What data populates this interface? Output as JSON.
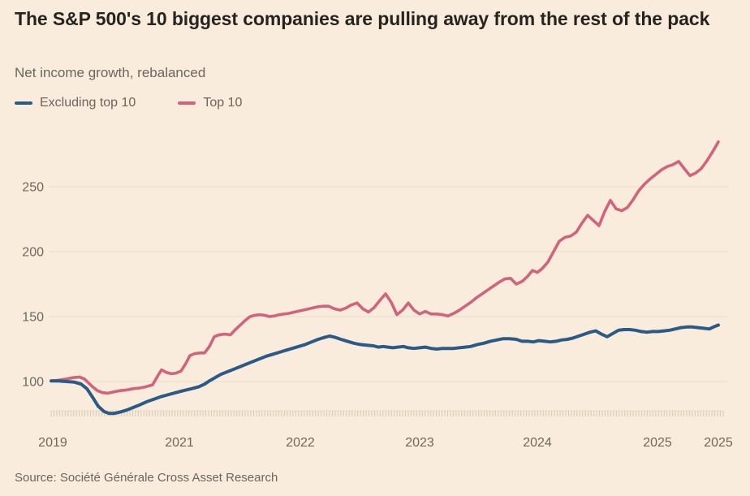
{
  "colors": {
    "background": "#f9ecdd",
    "title_text": "#262420",
    "muted_text": "#6b6560",
    "gridline": "#e9dccb",
    "minor_tick": "#d8c7b5",
    "series_blue": "#2b5a86",
    "series_pink": "#d0647d"
  },
  "chart_data": {
    "type": "line",
    "title": "The S&P 500's 10 biggest companies are pulling away from the rest of the pack",
    "subtitle": "Net income growth, rebalanced",
    "source": "Source: Société Générale Cross Asset Research",
    "xlabel": "",
    "ylabel": "",
    "grid": "horizontal",
    "legend_position": "top-left",
    "y_axis": {
      "ticks": [
        100,
        150,
        200,
        250
      ],
      "range": [
        73,
        293
      ]
    },
    "x_axis": {
      "ticks": [
        {
          "label": "2019",
          "pos": 0.24
        },
        {
          "label": "2021",
          "pos": 19.22
        },
        {
          "label": "2022",
          "pos": 37.35
        },
        {
          "label": "2023",
          "pos": 55.23
        },
        {
          "label": "2024",
          "pos": 72.87
        },
        {
          "label": "2025",
          "pos": 90.88
        },
        {
          "label": "2025",
          "pos": 100
        }
      ],
      "minor_tick_count": 240
    },
    "series": [
      {
        "name": "Excluding top 10",
        "color": "#2b5a86",
        "stroke_width": 4,
        "points": [
          [
            0,
            100.5
          ],
          [
            1.09,
            100.5
          ],
          [
            2.31,
            100
          ],
          [
            3.53,
            99.5
          ],
          [
            4.5,
            98
          ],
          [
            5.35,
            94.5
          ],
          [
            6.2,
            88
          ],
          [
            7.06,
            81
          ],
          [
            7.91,
            77
          ],
          [
            8.64,
            75.5
          ],
          [
            9.49,
            75.5
          ],
          [
            10.34,
            76.5
          ],
          [
            11.31,
            78
          ],
          [
            12.29,
            80
          ],
          [
            13.26,
            82
          ],
          [
            14.36,
            84.5
          ],
          [
            15.45,
            86.5
          ],
          [
            16.55,
            88.5
          ],
          [
            17.64,
            90
          ],
          [
            18.74,
            91.5
          ],
          [
            19.83,
            93
          ],
          [
            21.05,
            94.5
          ],
          [
            22.14,
            96
          ],
          [
            22.99,
            98
          ],
          [
            23.72,
            100.5
          ],
          [
            24.57,
            103
          ],
          [
            25.42,
            105.5
          ],
          [
            26.4,
            107.5
          ],
          [
            27.37,
            109.5
          ],
          [
            28.34,
            111.5
          ],
          [
            29.32,
            113.5
          ],
          [
            30.29,
            115.5
          ],
          [
            31.26,
            117.5
          ],
          [
            32.24,
            119.5
          ],
          [
            33.21,
            121
          ],
          [
            34.18,
            122.5
          ],
          [
            35.16,
            124
          ],
          [
            36.13,
            125.5
          ],
          [
            37.11,
            127
          ],
          [
            38.08,
            128.5
          ],
          [
            39.05,
            130.5
          ],
          [
            40.03,
            132.5
          ],
          [
            41,
            134
          ],
          [
            41.73,
            135
          ],
          [
            42.58,
            134
          ],
          [
            43.43,
            132.5
          ],
          [
            44.4,
            131
          ],
          [
            45.38,
            129.5
          ],
          [
            46.35,
            128.5
          ],
          [
            47.32,
            128
          ],
          [
            48.3,
            127.5
          ],
          [
            49.03,
            126.5
          ],
          [
            49.76,
            127
          ],
          [
            50.49,
            126.5
          ],
          [
            51.22,
            126
          ],
          [
            51.95,
            126.5
          ],
          [
            52.8,
            127
          ],
          [
            53.53,
            126
          ],
          [
            54.38,
            125.5
          ],
          [
            55.23,
            126
          ],
          [
            56.08,
            126.5
          ],
          [
            56.93,
            125.5
          ],
          [
            57.79,
            125
          ],
          [
            58.64,
            125.5
          ],
          [
            59.49,
            125.5
          ],
          [
            60.34,
            125.5
          ],
          [
            61.19,
            126
          ],
          [
            62.04,
            126.5
          ],
          [
            62.89,
            127
          ],
          [
            63.87,
            128.5
          ],
          [
            64.84,
            129.5
          ],
          [
            65.81,
            131
          ],
          [
            66.79,
            132
          ],
          [
            67.76,
            133
          ],
          [
            68.73,
            133
          ],
          [
            69.71,
            132.5
          ],
          [
            70.56,
            131
          ],
          [
            71.41,
            131
          ],
          [
            72.26,
            130.5
          ],
          [
            73.11,
            131.5
          ],
          [
            73.97,
            131
          ],
          [
            74.82,
            130.5
          ],
          [
            75.67,
            131
          ],
          [
            76.52,
            132
          ],
          [
            77.37,
            132.5
          ],
          [
            78.22,
            133.5
          ],
          [
            79.07,
            135
          ],
          [
            79.93,
            136.5
          ],
          [
            80.78,
            138
          ],
          [
            81.63,
            139
          ],
          [
            82.48,
            136.5
          ],
          [
            83.33,
            134.5
          ],
          [
            84.18,
            137
          ],
          [
            85.04,
            139.5
          ],
          [
            85.89,
            140
          ],
          [
            86.74,
            140
          ],
          [
            87.59,
            139.5
          ],
          [
            88.44,
            138.5
          ],
          [
            89.29,
            138
          ],
          [
            90.15,
            138.5
          ],
          [
            91,
            138.5
          ],
          [
            91.85,
            139
          ],
          [
            92.7,
            139.5
          ],
          [
            93.55,
            140.5
          ],
          [
            94.4,
            141.5
          ],
          [
            95.26,
            142
          ],
          [
            96.11,
            142
          ],
          [
            96.96,
            141.5
          ],
          [
            97.81,
            141
          ],
          [
            98.66,
            140.5
          ],
          [
            99.27,
            142
          ],
          [
            100,
            143.5
          ]
        ]
      },
      {
        "name": "Top 10",
        "color": "#d0647d",
        "stroke_width": 3.6,
        "points": [
          [
            0,
            100.5
          ],
          [
            1.09,
            101
          ],
          [
            2.31,
            102
          ],
          [
            3.28,
            103
          ],
          [
            4.26,
            103.5
          ],
          [
            4.99,
            102
          ],
          [
            5.6,
            99
          ],
          [
            6.2,
            96
          ],
          [
            6.93,
            93
          ],
          [
            7.66,
            91.5
          ],
          [
            8.52,
            91
          ],
          [
            9.37,
            92
          ],
          [
            10.34,
            93
          ],
          [
            11.31,
            93.5
          ],
          [
            12.29,
            94.5
          ],
          [
            13.26,
            95
          ],
          [
            14.23,
            96
          ],
          [
            15.21,
            97.5
          ],
          [
            15.94,
            104
          ],
          [
            16.55,
            109
          ],
          [
            17.27,
            107
          ],
          [
            18,
            106
          ],
          [
            18.74,
            106.5
          ],
          [
            19.46,
            108
          ],
          [
            20.19,
            114
          ],
          [
            20.8,
            120
          ],
          [
            21.53,
            121.5
          ],
          [
            22.26,
            122
          ],
          [
            22.99,
            122
          ],
          [
            23.72,
            127
          ],
          [
            24.45,
            134.5
          ],
          [
            25.18,
            136
          ],
          [
            26.03,
            136.5
          ],
          [
            26.88,
            136
          ],
          [
            27.61,
            140
          ],
          [
            28.34,
            143.5
          ],
          [
            29.07,
            147
          ],
          [
            29.8,
            150
          ],
          [
            30.53,
            151
          ],
          [
            31.26,
            151.5
          ],
          [
            32,
            151
          ],
          [
            32.73,
            150
          ],
          [
            33.46,
            150.5
          ],
          [
            34.18,
            151.5
          ],
          [
            34.91,
            152
          ],
          [
            35.64,
            152.5
          ],
          [
            36.5,
            153.5
          ],
          [
            37.35,
            154.5
          ],
          [
            38.2,
            155.5
          ],
          [
            39.05,
            156.5
          ],
          [
            39.9,
            157.5
          ],
          [
            40.75,
            158
          ],
          [
            41.61,
            158
          ],
          [
            42.46,
            156
          ],
          [
            43.31,
            155
          ],
          [
            44.16,
            156.5
          ],
          [
            45.01,
            159
          ],
          [
            45.86,
            160.5
          ],
          [
            46.72,
            156
          ],
          [
            47.57,
            153.5
          ],
          [
            48.42,
            157
          ],
          [
            49.27,
            162.5
          ],
          [
            50.12,
            167.5
          ],
          [
            50.97,
            161
          ],
          [
            51.82,
            151.5
          ],
          [
            52.68,
            155
          ],
          [
            53.53,
            160.5
          ],
          [
            54.38,
            155
          ],
          [
            55.23,
            152
          ],
          [
            56.08,
            154
          ],
          [
            56.93,
            152
          ],
          [
            57.79,
            152
          ],
          [
            58.64,
            151.5
          ],
          [
            59.49,
            150.5
          ],
          [
            60.34,
            152.5
          ],
          [
            61.19,
            155
          ],
          [
            62.04,
            158
          ],
          [
            62.89,
            161
          ],
          [
            63.75,
            164.5
          ],
          [
            64.6,
            167.5
          ],
          [
            65.45,
            170.5
          ],
          [
            66.3,
            173.5
          ],
          [
            67.15,
            176.5
          ],
          [
            68,
            179
          ],
          [
            68.86,
            179.5
          ],
          [
            69.71,
            175
          ],
          [
            70.56,
            177
          ],
          [
            71.41,
            181
          ],
          [
            72.14,
            185.5
          ],
          [
            72.87,
            184
          ],
          [
            73.6,
            187
          ],
          [
            74.45,
            192
          ],
          [
            75.3,
            200
          ],
          [
            76.16,
            208
          ],
          [
            77.01,
            211
          ],
          [
            77.86,
            212
          ],
          [
            78.71,
            215
          ],
          [
            79.56,
            222
          ],
          [
            80.41,
            228
          ],
          [
            81.27,
            224
          ],
          [
            82.12,
            220
          ],
          [
            82.97,
            231
          ],
          [
            83.82,
            239.5
          ],
          [
            84.67,
            233
          ],
          [
            85.52,
            231.5
          ],
          [
            86.37,
            234
          ],
          [
            87.23,
            240
          ],
          [
            88.08,
            247
          ],
          [
            88.93,
            252
          ],
          [
            89.78,
            256
          ],
          [
            90.63,
            259.5
          ],
          [
            91.48,
            263
          ],
          [
            92.34,
            265.5
          ],
          [
            93.19,
            267
          ],
          [
            94.04,
            269.5
          ],
          [
            94.89,
            264
          ],
          [
            95.74,
            258.5
          ],
          [
            96.59,
            260.5
          ],
          [
            97.45,
            264
          ],
          [
            98.3,
            270
          ],
          [
            99.15,
            277
          ],
          [
            100,
            284.5
          ]
        ]
      }
    ]
  }
}
